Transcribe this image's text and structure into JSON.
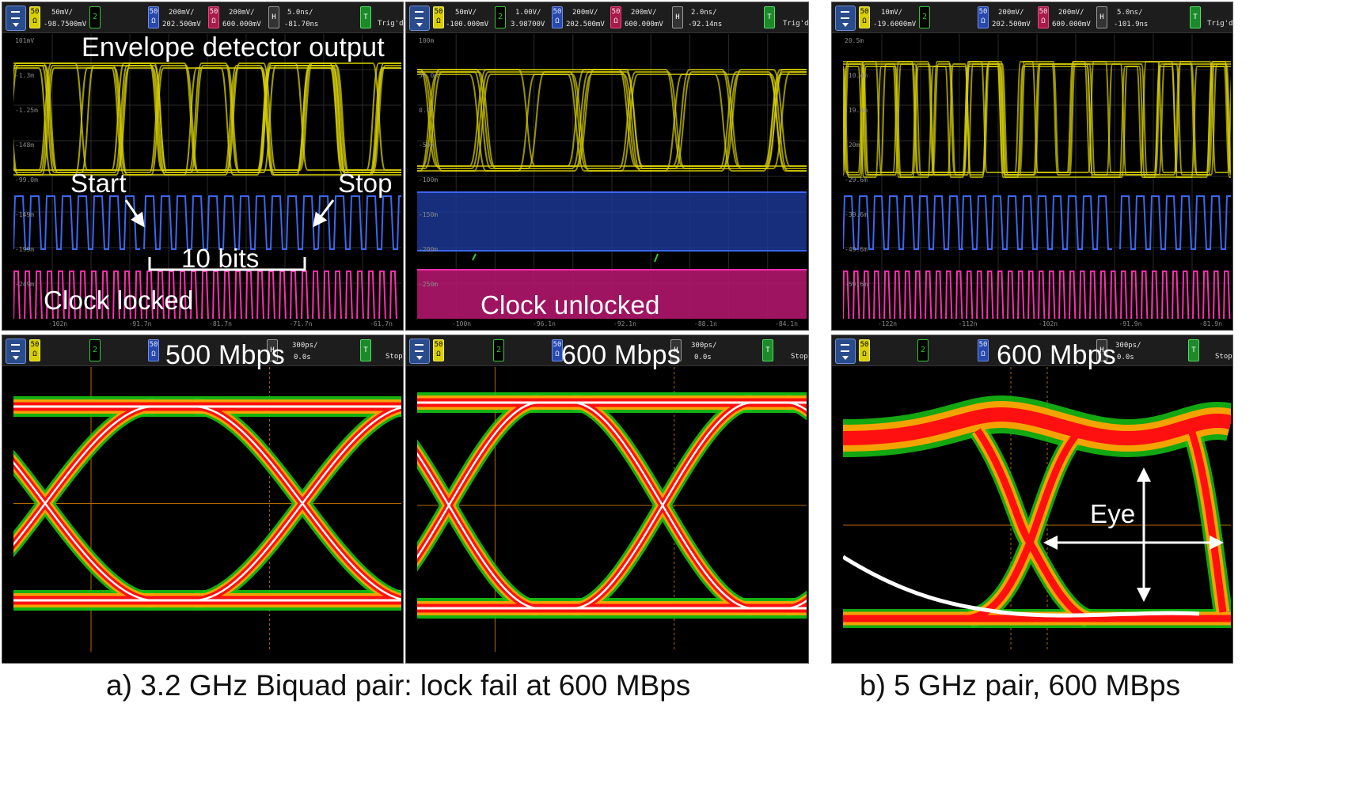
{
  "panels": {
    "top_left": {
      "readouts": {
        "c1_scale": "50mV/",
        "c1_offset": "-98.7500mV",
        "c3_scale": "200mV/",
        "c3_offset": "202.500mV",
        "c4_scale": "200mV/",
        "c4_offset": "600.000mV",
        "h_scale": "5.0ns/",
        "h_pos": "-81.70ns",
        "trig": "Trig'd"
      },
      "labels": {
        "title": "Envelope detector output",
        "start": "Start",
        "stop": "Stop",
        "bits": "10 bits",
        "clock": "Clock locked"
      },
      "y_ticks": [
        "101mV",
        "-1.3m",
        "-1.25m",
        "-148m",
        "-99.0m",
        "-149m",
        "-199m",
        "-249m"
      ],
      "x_ticks": [
        "-102n",
        "-91.7n",
        "-81.7n",
        "-71.7n",
        "-61.7n"
      ]
    },
    "top_middle": {
      "readouts": {
        "c1_scale": "50mV/",
        "c1_offset": "-100.000mV",
        "c2_scale": "1.00V/",
        "c2_offset": "3.98700V",
        "c3_scale": "200mV/",
        "c3_offset": "202.500mV",
        "c4_scale": "200mV/",
        "c4_offset": "600.000mV",
        "h_scale": "2.0ns/",
        "h_pos": "-92.14ns",
        "trig": "Trig'd"
      },
      "labels": {
        "clock": "Clock unlocked"
      },
      "y_ticks": [
        "100m",
        "50.0m",
        "0.0",
        "-50m",
        "-100m",
        "-150m",
        "-200m",
        "-250m"
      ],
      "x_ticks": [
        "-100n",
        "-96.1n",
        "-92.1n",
        "-88.1n",
        "-84.1n"
      ]
    },
    "top_right": {
      "readouts": {
        "c1_scale": "10mV/",
        "c1_offset": "-19.6000mV",
        "c3_scale": "200mV/",
        "c3_offset": "202.500mV",
        "c4_scale": "200mV/",
        "c4_offset": "600.000mV",
        "h_scale": "5.0ns/",
        "h_pos": "-101.9ns",
        "trig": "Trig'd"
      },
      "y_ticks": [
        "20.5m",
        "-10.4m",
        "-19.6m",
        "-20m",
        "-29.6m",
        "-39.6m",
        "-49.6m",
        "-59.6m"
      ],
      "x_ticks": [
        "-122n",
        "-112n",
        "-102n",
        "-91.9n",
        "-81.9n"
      ]
    },
    "bottom_left": {
      "readouts": {
        "h_scale": "300ps/",
        "h_pos": "0.0s",
        "status": "Stop"
      },
      "labels": {
        "rate": "500 Mbps"
      }
    },
    "bottom_middle": {
      "readouts": {
        "h_scale": "300ps/",
        "h_pos": "0.0s",
        "status": "Stop"
      },
      "labels": {
        "rate": "600 Mbps"
      }
    },
    "bottom_right": {
      "readouts": {
        "h_scale": "300ps/",
        "h_pos": "0.0s",
        "status": "Stop"
      },
      "labels": {
        "rate": "600 Mbps",
        "eye": "Eye"
      }
    }
  },
  "captions": {
    "a": "a) 3.2 GHz Biquad pair: lock fail at 600 MBps",
    "b": "b) 5 GHz pair,  600 MBps"
  },
  "colors": {
    "yellow_trace": "#d8d000",
    "blue_trace": "#3b67f0",
    "magenta_trace": "#ff2db0",
    "green_trace": "#35c835",
    "eye_red": "#ff1010",
    "eye_orange": "#ffa200",
    "eye_green": "#16c414"
  },
  "icons": [
    "menu-icon",
    "trigger-icon"
  ]
}
